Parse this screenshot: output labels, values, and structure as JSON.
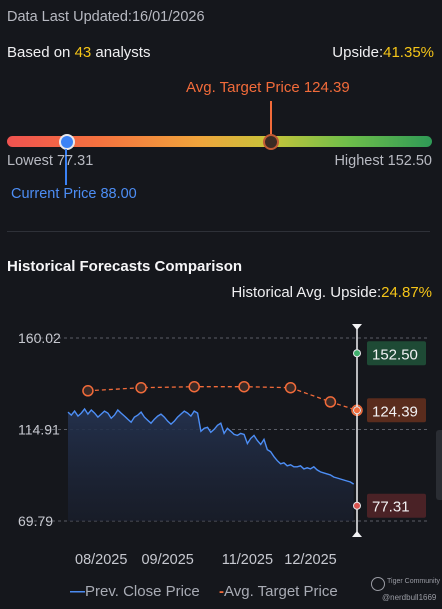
{
  "header": {
    "updated_prefix": "Data Last Updated:",
    "updated_date": "16/01/2026",
    "based_prefix": "Based on ",
    "analysts_count": "43",
    "based_suffix": " analysts",
    "upside_prefix": "Upside:",
    "upside_value": "41.35%"
  },
  "range": {
    "avg_target_label": "Avg. Target Price 124.39",
    "lowest_label": "Lowest 77.31",
    "highest_label": "Highest 152.50",
    "current_label": "Current Price 88.00",
    "lowest": 77.31,
    "highest": 152.5,
    "current": 88.0,
    "avg_target": 124.39
  },
  "historical": {
    "title": "Historical Forecasts Comparison",
    "upside_prefix": "Historical Avg. Upside:",
    "upside_value": "24.87%"
  },
  "legend": {
    "current_label": "Prev. Close Price",
    "target_label": "Avg. Target Price"
  },
  "watermark": {
    "line1": "Tiger Community",
    "line2": "@nerdbull1669"
  },
  "colors": {
    "price_line": "#4d8ef5",
    "target_line": "#f26b3a",
    "high_label_bg": "#1e4a35",
    "target_label_bg": "#5a2c1d",
    "low_label_bg": "#4a2226"
  },
  "chart_data": {
    "type": "line",
    "ylim": [
      69.79,
      160.02
    ],
    "y_ticks": [
      "160.02",
      "114.91",
      "69.79"
    ],
    "y_tick_values": [
      160.02,
      114.91,
      69.79
    ],
    "x_tick_labels": [
      "08/2025",
      "09/2025",
      "11/2025",
      "12/2025"
    ],
    "x_tick_positions": [
      0.5,
      1.5,
      2.7,
      3.65
    ],
    "x_range": [
      0,
      4.35
    ],
    "series": [
      {
        "name": "Prev. Close Price",
        "x": [
          0.0,
          0.05,
          0.1,
          0.15,
          0.2,
          0.25,
          0.3,
          0.35,
          0.4,
          0.45,
          0.5,
          0.55,
          0.6,
          0.65,
          0.7,
          0.75,
          0.8,
          0.85,
          0.9,
          0.95,
          1.0,
          1.05,
          1.1,
          1.15,
          1.2,
          1.25,
          1.3,
          1.35,
          1.4,
          1.45,
          1.5,
          1.55,
          1.6,
          1.65,
          1.7,
          1.75,
          1.8,
          1.85,
          1.9,
          1.95,
          2.0,
          2.05,
          2.1,
          2.15,
          2.2,
          2.25,
          2.3,
          2.35,
          2.4,
          2.45,
          2.5,
          2.55,
          2.6,
          2.65,
          2.7,
          2.75,
          2.8,
          2.85,
          2.9,
          2.95,
          3.0,
          3.05,
          3.1,
          3.15,
          3.2,
          3.25,
          3.3,
          3.35,
          3.4,
          3.45,
          3.5,
          3.55,
          3.6,
          3.65,
          3.7,
          3.75,
          3.8,
          3.85,
          3.9,
          3.95,
          4.0,
          4.05,
          4.1,
          4.15,
          4.2,
          4.25,
          4.3
        ],
        "values": [
          123.5,
          122.0,
          124.0,
          121.5,
          123.0,
          125.0,
          122.5,
          124.5,
          123.0,
          121.0,
          122.5,
          124.0,
          123.0,
          120.5,
          122.0,
          124.5,
          123.0,
          121.5,
          120.0,
          118.5,
          121.0,
          122.0,
          123.5,
          121.0,
          119.5,
          118.0,
          120.0,
          121.5,
          122.5,
          121.0,
          119.0,
          117.5,
          119.0,
          121.0,
          122.5,
          124.0,
          123.0,
          121.5,
          124.0,
          123.0,
          114.0,
          115.5,
          116.0,
          113.5,
          115.0,
          117.0,
          118.0,
          113.0,
          115.5,
          114.0,
          112.5,
          112.0,
          113.0,
          112.5,
          108.0,
          110.5,
          112.0,
          109.5,
          107.5,
          110.0,
          105.0,
          104.0,
          101.5,
          99.5,
          98.0,
          98.5,
          97.0,
          97.5,
          96.5,
          96.5,
          97.0,
          95.5,
          96.0,
          95.5,
          96.5,
          95.0,
          94.0,
          93.5,
          93.0,
          92.5,
          91.5,
          91.0,
          90.5,
          90.0,
          89.5,
          89.0,
          88.0
        ]
      },
      {
        "name": "Avg. Target Price",
        "x": [
          0.3,
          1.1,
          1.9,
          2.65,
          3.35,
          3.95,
          4.35
        ],
        "values": [
          134.0,
          135.5,
          136.0,
          136.0,
          135.5,
          128.5,
          124.39
        ]
      }
    ],
    "markers": [
      {
        "label": "152.50",
        "value": 152.5,
        "kind": "high"
      },
      {
        "label": "124.39",
        "value": 124.39,
        "kind": "target"
      },
      {
        "label": "77.31",
        "value": 77.31,
        "kind": "low"
      }
    ]
  }
}
